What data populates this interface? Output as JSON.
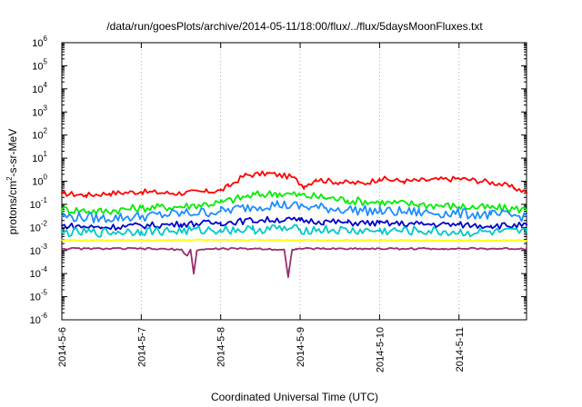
{
  "chart_data": {
    "type": "line",
    "title": "/data/run/goesPlots/archive/2014-05-11/18:00/flux/../flux/5daysMoonFluxes.txt",
    "xlabel": "Coordinated Universal Time (UTC)",
    "ylabel": {
      "prefix": "protons/cm",
      "sup": "2",
      "suffix": "-s-sr-MeV"
    },
    "y_scale": "log",
    "ylim": [
      1e-06,
      1000000.0
    ],
    "xlim_days": [
      0,
      5.85
    ],
    "x_ticks": [
      {
        "day": 0,
        "label": "2014-5-6"
      },
      {
        "day": 1,
        "label": "2014-5-7"
      },
      {
        "day": 2,
        "label": "2014-5-8"
      },
      {
        "day": 3,
        "label": "2014-5-9"
      },
      {
        "day": 4,
        "label": "2014-5-10"
      },
      {
        "day": 5,
        "label": "2014-5-11"
      }
    ],
    "y_ticks": [
      {
        "exp": -6,
        "label": "10",
        "sup": "-6"
      },
      {
        "exp": -5,
        "label": "10",
        "sup": "-5"
      },
      {
        "exp": -4,
        "label": "10",
        "sup": "-4"
      },
      {
        "exp": -3,
        "label": "10",
        "sup": "-3"
      },
      {
        "exp": -2,
        "label": "10",
        "sup": "-2"
      },
      {
        "exp": -1,
        "label": "10",
        "sup": "-1"
      },
      {
        "exp": 0,
        "label": "10",
        "sup": "0"
      },
      {
        "exp": 1,
        "label": "10",
        "sup": "1"
      },
      {
        "exp": 2,
        "label": "10",
        "sup": "2"
      },
      {
        "exp": 3,
        "label": "10",
        "sup": "3"
      },
      {
        "exp": 4,
        "label": "10",
        "sup": "4"
      },
      {
        "exp": 5,
        "label": "10",
        "sup": "5"
      },
      {
        "exp": 6,
        "label": "10",
        "sup": "6"
      }
    ],
    "grid": {
      "vertical": true,
      "horizontal": false
    },
    "series": [
      {
        "color": "#ff0000",
        "x": [
          0,
          0.3,
          0.6,
          1.0,
          1.4,
          1.8,
          2.0,
          2.1,
          2.3,
          2.6,
          2.9,
          3.05,
          3.2,
          3.5,
          3.8,
          4.0,
          4.3,
          4.6,
          5.0,
          5.3,
          5.5,
          5.7,
          5.85
        ],
        "y": [
          0.3,
          0.25,
          0.3,
          0.35,
          0.3,
          0.35,
          0.4,
          0.6,
          1.8,
          2.2,
          1.5,
          0.6,
          1.2,
          0.9,
          0.8,
          1.3,
          1.0,
          1.1,
          1.3,
          1.0,
          0.8,
          0.5,
          0.35
        ]
      },
      {
        "color": "#00ee00",
        "x": [
          0,
          0.5,
          1.0,
          1.5,
          2.0,
          2.4,
          2.7,
          3.0,
          3.3,
          3.6,
          4.0,
          4.5,
          5.0,
          5.4,
          5.85
        ],
        "y": [
          0.06,
          0.05,
          0.07,
          0.08,
          0.12,
          0.25,
          0.3,
          0.25,
          0.2,
          0.15,
          0.12,
          0.1,
          0.08,
          0.07,
          0.06
        ]
      },
      {
        "color": "#1e8cff",
        "x": [
          0,
          0.5,
          1.0,
          1.5,
          2.0,
          2.4,
          2.7,
          3.0,
          3.3,
          3.6,
          4.0,
          4.5,
          5.0,
          5.4,
          5.85
        ],
        "y": [
          0.03,
          0.025,
          0.03,
          0.04,
          0.05,
          0.08,
          0.1,
          0.08,
          0.07,
          0.06,
          0.05,
          0.045,
          0.04,
          0.035,
          0.03
        ]
      },
      {
        "color": "#0000cc",
        "x": [
          0,
          0.5,
          1.0,
          1.5,
          2.0,
          2.4,
          2.7,
          3.0,
          3.3,
          3.6,
          4.0,
          4.5,
          5.0,
          5.4,
          5.85
        ],
        "y": [
          0.012,
          0.01,
          0.012,
          0.014,
          0.016,
          0.02,
          0.022,
          0.02,
          0.018,
          0.016,
          0.015,
          0.014,
          0.013,
          0.012,
          0.012
        ]
      },
      {
        "color": "#00c8c8",
        "x": [
          0,
          0.5,
          1.0,
          1.5,
          2.0,
          2.4,
          2.7,
          3.0,
          3.3,
          3.6,
          4.0,
          4.5,
          5.0,
          5.4,
          5.85
        ],
        "y": [
          0.006,
          0.006,
          0.007,
          0.007,
          0.008,
          0.008,
          0.009,
          0.008,
          0.008,
          0.007,
          0.007,
          0.007,
          0.006,
          0.006,
          0.006
        ]
      },
      {
        "color": "#ffff00",
        "x": [
          0,
          1.0,
          2.0,
          3.0,
          4.0,
          5.0,
          5.85
        ],
        "y": [
          0.0028,
          0.0028,
          0.0029,
          0.0028,
          0.0028,
          0.0027,
          0.0028
        ]
      },
      {
        "color": "#9b2d6e",
        "x": [
          0,
          0.5,
          1.0,
          1.5,
          1.58,
          1.62,
          1.66,
          1.7,
          1.75,
          2.0,
          2.5,
          2.8,
          2.85,
          2.9,
          2.95,
          3.3,
          3.8,
          4.3,
          4.8,
          5.3,
          5.85
        ],
        "y": [
          0.0012,
          0.0012,
          0.0012,
          0.0011,
          0.0006,
          0.0011,
          0.0001,
          0.001,
          0.0011,
          0.0012,
          0.0012,
          0.0011,
          7e-05,
          0.0011,
          0.0012,
          0.0012,
          0.0012,
          0.0012,
          0.0012,
          0.0012,
          0.0012
        ]
      }
    ]
  }
}
